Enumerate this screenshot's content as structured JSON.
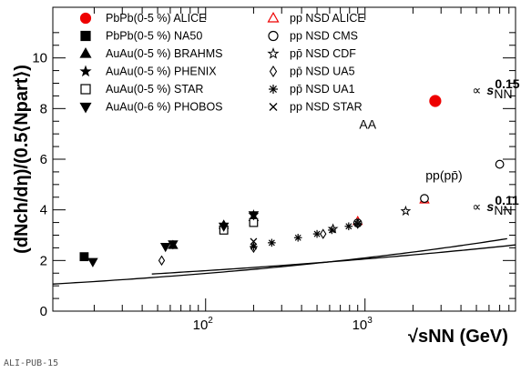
{
  "chart_data": {
    "type": "scatter",
    "title": "",
    "xlabel": "√sNN (GeV)",
    "ylabel": "(dNch/dη)/(0.5⟨Npart⟩)",
    "xscale": "log",
    "xlim": [
      11,
      8800
    ],
    "ylim": [
      0,
      12
    ],
    "ytick_labels": [
      "0",
      "2",
      "4",
      "6",
      "8",
      "10"
    ],
    "xtick_labels": [
      "10²",
      "10³"
    ],
    "legend_placement": "top-left",
    "series": [
      {
        "name": "PbPb(0-5 %) ALICE",
        "marker": "circle-filled",
        "color": "#ee0000",
        "x": [
          2760
        ],
        "y": [
          8.3
        ]
      },
      {
        "name": "PbPb(0-5 %) NA50",
        "marker": "square-filled",
        "color": "#000000",
        "x": [
          17.3
        ],
        "y": [
          2.15
        ]
      },
      {
        "name": "AuAu(0-5 %) BRAHMS",
        "marker": "triangle-up-filled",
        "color": "#000000",
        "x": [
          62.4,
          130,
          200
        ],
        "y": [
          2.6,
          3.4,
          3.7
        ]
      },
      {
        "name": "AuAu(0-5 %) PHENIX",
        "marker": "star-filled",
        "color": "#000000",
        "x": [
          130,
          200
        ],
        "y": [
          3.3,
          3.8
        ]
      },
      {
        "name": "AuAu(0-5 %) STAR",
        "marker": "square-open",
        "color": "#000000",
        "x": [
          130,
          200
        ],
        "y": [
          3.2,
          3.5
        ]
      },
      {
        "name": "AuAu(0-6 %) PHOBOS",
        "marker": "triangle-down-filled",
        "color": "#000000",
        "x": [
          19.6,
          56,
          62.4,
          130,
          200
        ],
        "y": [
          1.95,
          2.55,
          2.65,
          3.35,
          3.8
        ]
      },
      {
        "name": "pp NSD ALICE",
        "marker": "triangle-up-open",
        "color": "#ee0000",
        "x": [
          900,
          2360
        ],
        "y": [
          3.55,
          4.4
        ]
      },
      {
        "name": "pp NSD CMS",
        "marker": "circle-open",
        "color": "#000000",
        "x": [
          900,
          2360,
          7000
        ],
        "y": [
          3.48,
          4.45,
          5.8
        ]
      },
      {
        "name": "pp̄ NSD CDF",
        "marker": "star-open",
        "color": "#000000",
        "x": [
          630,
          1800
        ],
        "y": [
          3.25,
          3.95
        ]
      },
      {
        "name": "pp̄ NSD UA5",
        "marker": "diamond-open",
        "color": "#000000",
        "x": [
          53,
          200,
          546,
          900
        ],
        "y": [
          2.0,
          2.5,
          3.05,
          3.45
        ]
      },
      {
        "name": "pp̄ NSD UA1",
        "marker": "asterisk",
        "color": "#000000",
        "x": [
          200,
          260,
          380,
          500,
          620,
          790,
          900
        ],
        "y": [
          2.55,
          2.7,
          2.9,
          3.05,
          3.2,
          3.35,
          3.45
        ]
      },
      {
        "name": "pp NSD STAR",
        "marker": "cross",
        "color": "#000000",
        "x": [
          200
        ],
        "y": [
          2.75
        ]
      }
    ],
    "fits": [
      {
        "name": "AA",
        "label": "AA",
        "power_label": "0.15",
        "coef": 0.746,
        "exponent": 0.15,
        "xrange": [
          11,
          7800
        ],
        "label_at": [
          920,
          7.2
        ],
        "power_at": [
          4700,
          8.55
        ]
      },
      {
        "name": "pp",
        "label": "pp(pp̄)",
        "power_label": "0.11",
        "coef": 0.963,
        "exponent": 0.11,
        "xrange": [
          46,
          8800
        ],
        "label_at": [
          2400,
          5.2
        ],
        "power_at": [
          4700,
          3.95
        ]
      }
    ],
    "footer": "ALI-PUB-15"
  }
}
